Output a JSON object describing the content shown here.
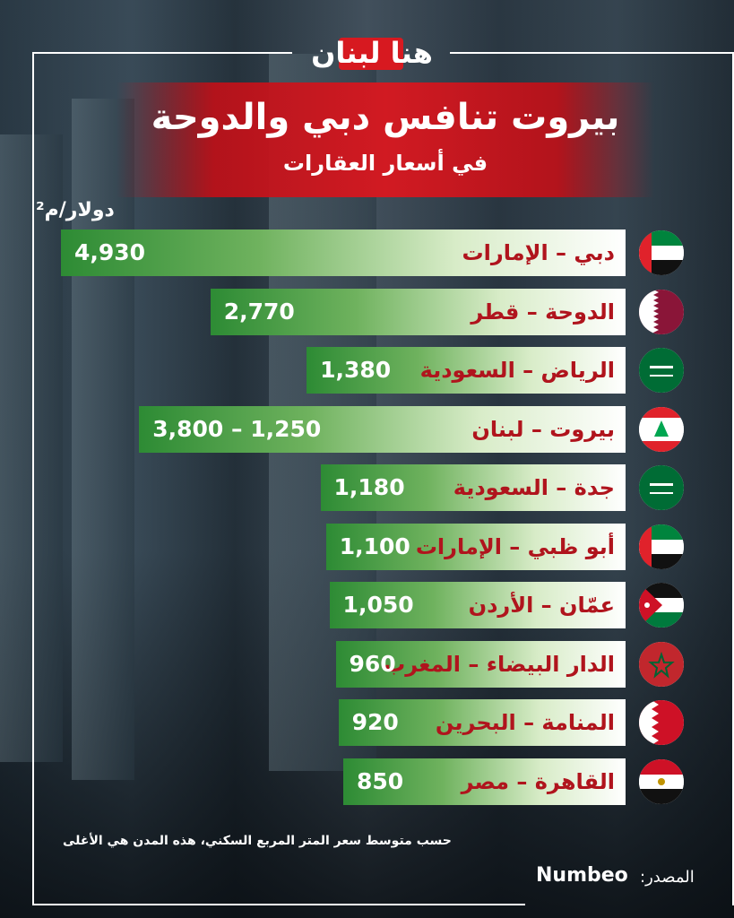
{
  "logo_text": "هنا لبنان",
  "title": "بيروت تنافس دبي والدوحة",
  "subtitle": "في أسعار العقارات",
  "unit_label": "دولار/م²",
  "note": "حسب متوسط سعر المتر المربع السكني، هذه المدن هي الأغلى",
  "source_label": "المصدر:",
  "source_name": "Numbeo",
  "chart_data": {
    "type": "bar",
    "orientation": "horizontal",
    "title": "بيروت تنافس دبي والدوحة",
    "subtitle": "في أسعار العقارات",
    "ylabel": "دولار/م²",
    "categories": [
      "دبي – الإمارات",
      "الدوحة – قطر",
      "الرياض – السعودية",
      "بيروت – لبنان",
      "جدة – السعودية",
      "أبو ظبي – الإمارات",
      "عمّان – الأردن",
      "الدار البيضاء – المغرب",
      "المنامة – البحرين",
      "القاهرة – مصر"
    ],
    "values": [
      4930,
      2770,
      1380,
      3800,
      1180,
      1100,
      1050,
      960,
      920,
      850
    ],
    "value_labels": [
      "4,930",
      "2,770",
      "1,380",
      "3,800 – 1,250",
      "1,180",
      "1,100",
      "1,050",
      "960",
      "920",
      "850"
    ],
    "flags": [
      "uae-flag-icon",
      "qatar-flag-icon",
      "saudi-flag-icon",
      "lebanon-flag-icon",
      "saudi-flag-icon",
      "uae-flag-icon",
      "jordan-flag-icon",
      "morocco-flag-icon",
      "bahrain-flag-icon",
      "egypt-flag-icon"
    ],
    "colors": {
      "bar_start": "#2d8b34",
      "bar_end": "#ffffff",
      "label": "#b0141d",
      "banner": "#d11a22"
    }
  }
}
